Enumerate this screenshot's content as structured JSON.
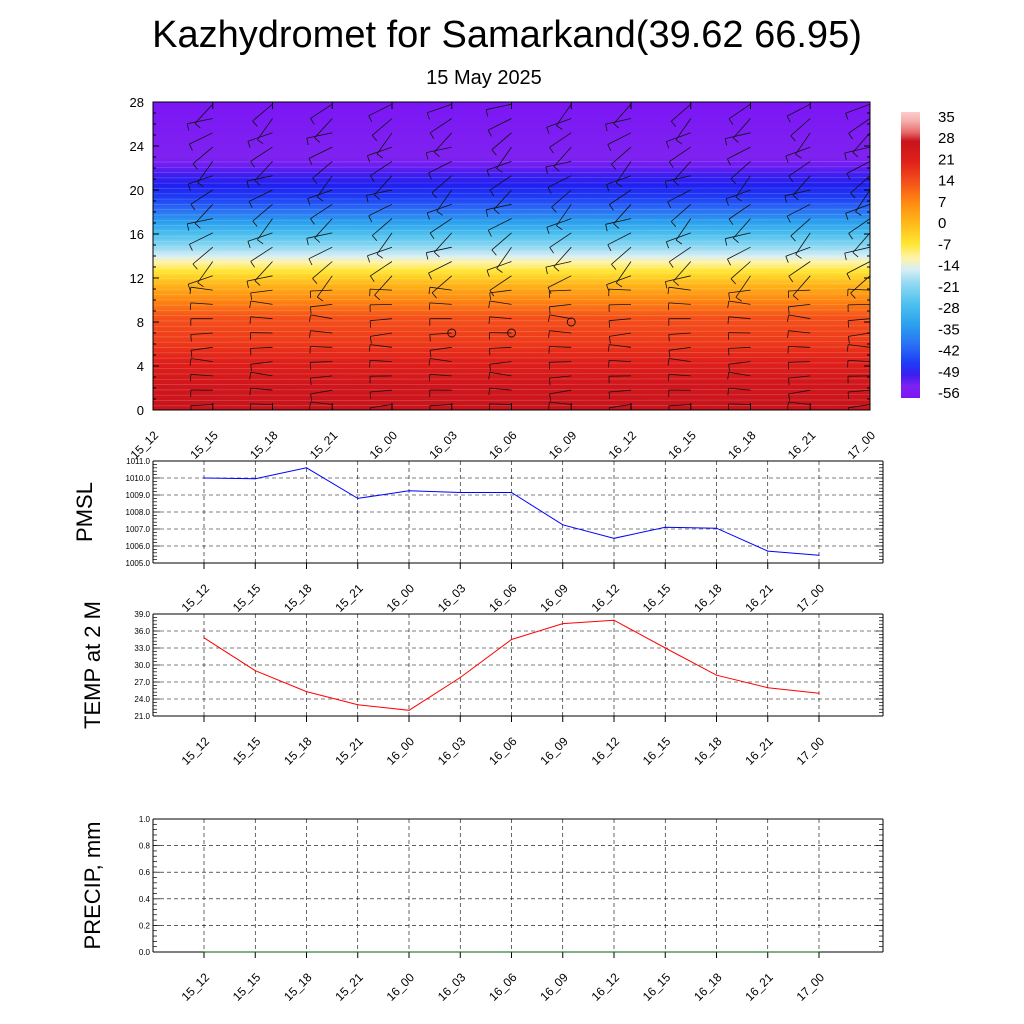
{
  "title": "Kazhydromet for Samarkand(39.62 66.95)",
  "subtitle": "15 May 2025",
  "colors": {
    "pmsl_line": "#0000ff",
    "temp_line": "#ff0000",
    "precip_line": "#006400",
    "grid": "#000000"
  },
  "chart_data": [
    {
      "id": "height-time-section",
      "type": "heatmap",
      "title": "",
      "xlabel": "",
      "ylabel": "",
      "x_ticks": [
        "15_12",
        "15_15",
        "15_18",
        "15_21",
        "16_00",
        "16_03",
        "16_06",
        "16_09",
        "16_12",
        "16_15",
        "16_18",
        "16_21",
        "17_00"
      ],
      "y_ticks": [
        0,
        4,
        8,
        12,
        16,
        20,
        24,
        28
      ],
      "ylim": [
        0,
        28
      ],
      "colorbar": {
        "labels": [
          "35",
          "28",
          "21",
          "14",
          "7",
          "0",
          "-7",
          "-14",
          "-21",
          "-28",
          "-35",
          "-42",
          "-49",
          "-56"
        ],
        "range": [
          -60,
          38
        ],
        "stops": [
          {
            "v": -60,
            "c": "#7b16f5"
          },
          {
            "v": -56,
            "c": "#7f22f0"
          },
          {
            "v": -52,
            "c": "#3a1ff0"
          },
          {
            "v": -48,
            "c": "#1e3cf5"
          },
          {
            "v": -42,
            "c": "#2a6ef5"
          },
          {
            "v": -35,
            "c": "#2aa0ee"
          },
          {
            "v": -28,
            "c": "#4cc0ee"
          },
          {
            "v": -21,
            "c": "#8fd8f2"
          },
          {
            "v": -16,
            "c": "#d6eef5"
          },
          {
            "v": -12,
            "c": "#fff3a8"
          },
          {
            "v": -7,
            "c": "#ffe530"
          },
          {
            "v": 0,
            "c": "#ffb81a"
          },
          {
            "v": 7,
            "c": "#ff8a10"
          },
          {
            "v": 14,
            "c": "#f5501a"
          },
          {
            "v": 21,
            "c": "#e0201a"
          },
          {
            "v": 28,
            "c": "#c8141c"
          },
          {
            "v": 31,
            "c": "#e86a6a"
          },
          {
            "v": 35,
            "c": "#f5b0b0"
          },
          {
            "v": 38,
            "c": "#ffcccc"
          }
        ]
      },
      "calm_markers": [
        {
          "x": "16_03",
          "y": 7
        },
        {
          "x": "16_06",
          "y": 7
        },
        {
          "x": "16_09",
          "y": 8
        }
      ]
    },
    {
      "id": "pmsl",
      "type": "line",
      "ylabel": "PMSL",
      "ylim": [
        1005.0,
        1011.0
      ],
      "y_ticks": [
        "1005.0",
        "1006.0",
        "1007.0",
        "1008.0",
        "1009.0",
        "1010.0",
        "1011.0"
      ],
      "x": [
        "15_12",
        "15_15",
        "15_18",
        "15_21",
        "16_00",
        "16_03",
        "16_06",
        "16_09",
        "16_12",
        "16_15",
        "16_18",
        "16_21",
        "17_00"
      ],
      "values": [
        1010.0,
        1009.95,
        1010.6,
        1008.8,
        1009.25,
        1009.15,
        1009.15,
        1007.25,
        1006.45,
        1007.1,
        1007.05,
        1005.7,
        1005.45
      ]
    },
    {
      "id": "temp2m",
      "type": "line",
      "ylabel": "TEMP at 2 M",
      "ylim": [
        21.0,
        39.0
      ],
      "y_ticks": [
        "21.0",
        "24.0",
        "27.0",
        "30.0",
        "33.0",
        "36.0",
        "39.0"
      ],
      "x": [
        "15_12",
        "15_15",
        "15_18",
        "15_21",
        "16_00",
        "16_03",
        "16_06",
        "16_09",
        "16_12",
        "16_15",
        "16_18",
        "16_21",
        "17_00"
      ],
      "values": [
        34.8,
        29.0,
        25.3,
        23.0,
        22.0,
        27.8,
        34.5,
        37.3,
        37.9,
        33.0,
        28.2,
        26.0,
        25.0
      ]
    },
    {
      "id": "precip",
      "type": "line",
      "ylabel": "PRECIP, mm",
      "ylim": [
        0.0,
        1.0
      ],
      "y_ticks": [
        "0.0",
        "0.2",
        "0.4",
        "0.6",
        "0.8",
        "1.0"
      ],
      "x": [
        "15_12",
        "15_15",
        "15_18",
        "15_21",
        "16_00",
        "16_03",
        "16_06",
        "16_09",
        "16_12",
        "16_15",
        "16_18",
        "16_21",
        "17_00"
      ],
      "values": [
        0,
        0,
        0,
        0,
        0,
        0,
        0,
        0,
        0,
        0,
        0,
        0,
        0
      ]
    }
  ]
}
